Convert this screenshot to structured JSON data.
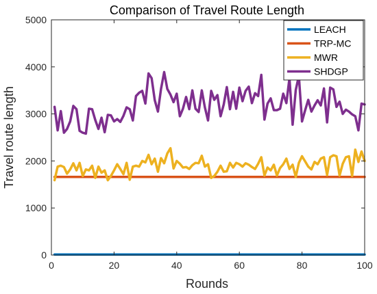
{
  "chart_data": {
    "type": "line",
    "title": "Comparison of Travel Route Length",
    "xlabel": "Rounds",
    "ylabel": "Travel route length",
    "xlim": [
      0,
      100
    ],
    "ylim": [
      0,
      5000
    ],
    "xticks": [
      0,
      20,
      40,
      60,
      80,
      100
    ],
    "yticks": [
      0,
      1000,
      2000,
      3000,
      4000,
      5000
    ],
    "legend_position": "top-right",
    "grid": false,
    "x": [
      1,
      2,
      3,
      4,
      5,
      6,
      7,
      8,
      9,
      10,
      11,
      12,
      13,
      14,
      15,
      16,
      17,
      18,
      19,
      20,
      21,
      22,
      23,
      24,
      25,
      26,
      27,
      28,
      29,
      30,
      31,
      32,
      33,
      34,
      35,
      36,
      37,
      38,
      39,
      40,
      41,
      42,
      43,
      44,
      45,
      46,
      47,
      48,
      49,
      50,
      51,
      52,
      53,
      54,
      55,
      56,
      57,
      58,
      59,
      60,
      61,
      62,
      63,
      64,
      65,
      66,
      67,
      68,
      69,
      70,
      71,
      72,
      73,
      74,
      75,
      76,
      77,
      78,
      79,
      80,
      81,
      82,
      83,
      84,
      85,
      86,
      87,
      88,
      89,
      90,
      91,
      92,
      93,
      94,
      95,
      96,
      97,
      98,
      99,
      100
    ],
    "series": [
      {
        "name": "LEACH",
        "color": "#0072BD",
        "values": [
          10,
          10,
          10,
          10,
          10,
          10,
          10,
          10,
          10,
          10,
          10,
          10,
          10,
          10,
          10,
          10,
          10,
          10,
          10,
          10,
          10,
          10,
          10,
          10,
          10,
          10,
          10,
          10,
          10,
          10,
          10,
          10,
          10,
          10,
          10,
          10,
          10,
          10,
          10,
          10,
          10,
          10,
          10,
          10,
          10,
          10,
          10,
          10,
          10,
          10,
          10,
          10,
          10,
          10,
          10,
          10,
          10,
          10,
          10,
          10,
          10,
          10,
          10,
          10,
          10,
          10,
          10,
          10,
          10,
          10,
          10,
          10,
          10,
          10,
          10,
          10,
          10,
          10,
          10,
          10,
          10,
          10,
          10,
          10,
          10,
          10,
          10,
          10,
          10,
          10,
          10,
          10,
          10,
          10,
          10,
          10,
          10,
          10,
          10,
          10
        ]
      },
      {
        "name": "TRP-MC",
        "color": "#D95319",
        "values": [
          1660,
          1660,
          1660,
          1660,
          1660,
          1660,
          1660,
          1660,
          1660,
          1660,
          1660,
          1660,
          1660,
          1660,
          1660,
          1660,
          1660,
          1660,
          1660,
          1660,
          1660,
          1660,
          1660,
          1660,
          1660,
          1660,
          1660,
          1660,
          1660,
          1660,
          1660,
          1660,
          1660,
          1660,
          1660,
          1660,
          1660,
          1660,
          1660,
          1660,
          1660,
          1660,
          1660,
          1660,
          1660,
          1660,
          1660,
          1660,
          1660,
          1660,
          1660,
          1660,
          1660,
          1660,
          1660,
          1660,
          1660,
          1660,
          1660,
          1660,
          1660,
          1660,
          1660,
          1660,
          1660,
          1660,
          1660,
          1660,
          1660,
          1660,
          1660,
          1660,
          1660,
          1660,
          1660,
          1660,
          1660,
          1660,
          1660,
          1660,
          1660,
          1660,
          1660,
          1660,
          1660,
          1660,
          1660,
          1660,
          1660,
          1660,
          1660,
          1660,
          1660,
          1660,
          1660,
          1660,
          1660,
          1660,
          1660,
          1660
        ]
      },
      {
        "name": "MWR",
        "color": "#EDB120",
        "values": [
          1590,
          1880,
          1900,
          1870,
          1730,
          1820,
          1950,
          1800,
          1960,
          1680,
          1820,
          1800,
          1900,
          1640,
          1880,
          1750,
          1800,
          1590,
          1680,
          1800,
          1930,
          1830,
          1720,
          1960,
          1600,
          1880,
          1900,
          1880,
          2000,
          1970,
          2130,
          1930,
          2050,
          1770,
          2060,
          1950,
          2160,
          2270,
          1840,
          2000,
          1940,
          1860,
          1870,
          1830,
          1910,
          1960,
          1950,
          2110,
          1880,
          1930,
          1640,
          1680,
          1770,
          1900,
          1770,
          1780,
          1960,
          1860,
          1960,
          1930,
          1880,
          1950,
          1920,
          1870,
          1830,
          1940,
          2080,
          1690,
          1860,
          1800,
          1920,
          1690,
          1850,
          1930,
          2050,
          1830,
          1920,
          1660,
          1960,
          2100,
          1990,
          1880,
          1820,
          1980,
          1930,
          2050,
          2080,
          1700,
          2080,
          2120,
          2100,
          1690,
          1940,
          2080,
          2100,
          1680,
          2240,
          1980,
          2200,
          2000
        ]
      },
      {
        "name": "SHDGP",
        "color": "#7E2F8E",
        "values": [
          3150,
          2650,
          3060,
          2600,
          2680,
          2840,
          3170,
          3100,
          2640,
          2600,
          2580,
          3110,
          3100,
          2870,
          2680,
          2920,
          2610,
          2980,
          2970,
          2840,
          2890,
          2830,
          2960,
          3140,
          3100,
          2860,
          3380,
          3450,
          3490,
          3220,
          3860,
          3760,
          3290,
          3050,
          3530,
          3890,
          3530,
          3410,
          3250,
          3430,
          2950,
          3110,
          3360,
          3100,
          3500,
          3110,
          3040,
          3500,
          3140,
          2860,
          3490,
          3300,
          3400,
          2950,
          3200,
          3570,
          3100,
          3470,
          3110,
          3560,
          3270,
          3490,
          3580,
          3230,
          3440,
          3380,
          3830,
          2880,
          3220,
          3330,
          3080,
          3080,
          3110,
          3430,
          3230,
          3760,
          2770,
          3510,
          3810,
          2840,
          3080,
          3300,
          3050,
          3180,
          3290,
          3180,
          3540,
          2820,
          3560,
          3520,
          3150,
          3260,
          3000,
          3090,
          3050,
          2990,
          2950,
          2650,
          3220,
          3200
        ]
      }
    ]
  }
}
